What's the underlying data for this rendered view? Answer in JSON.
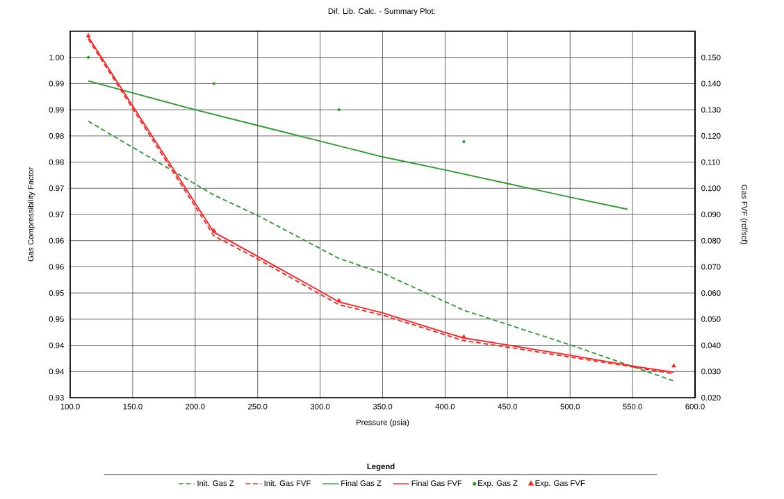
{
  "chart_data": {
    "type": "line",
    "title": "Dif. Lib. Calc. - Summary Plot:",
    "xlabel": "Pressure (psia)",
    "ylabel": "Gas Compressibility Factor",
    "y2label": "Gas FVF (rcf/scf)",
    "legend_title": "Legend",
    "legend": "bottom",
    "grid": true,
    "xlim": [
      100,
      600
    ],
    "ylim": [
      0.93,
      1.0
    ],
    "y2lim": [
      0.02,
      0.16
    ],
    "xticks": [
      {
        "value": 100,
        "label": "100.0"
      },
      {
        "value": 150,
        "label": "150.0"
      },
      {
        "value": 200,
        "label": "200.0"
      },
      {
        "value": 250,
        "label": "250.0"
      },
      {
        "value": 300,
        "label": "300.0"
      },
      {
        "value": 350,
        "label": "350.0"
      },
      {
        "value": 400,
        "label": "400.0"
      },
      {
        "value": 450,
        "label": "450.0"
      },
      {
        "value": 500,
        "label": "500.0"
      },
      {
        "value": 550,
        "label": "550.0"
      },
      {
        "value": 600,
        "label": "600.0"
      }
    ],
    "yticks": [
      {
        "value": 0.93,
        "label": "0.93"
      },
      {
        "value": 0.935,
        "label": "0.94"
      },
      {
        "value": 0.94,
        "label": "0.94"
      },
      {
        "value": 0.945,
        "label": "0.95"
      },
      {
        "value": 0.95,
        "label": "0.95"
      },
      {
        "value": 0.955,
        "label": "0.96"
      },
      {
        "value": 0.96,
        "label": "0.96"
      },
      {
        "value": 0.965,
        "label": "0.97"
      },
      {
        "value": 0.97,
        "label": "0.97"
      },
      {
        "value": 0.975,
        "label": "0.98"
      },
      {
        "value": 0.98,
        "label": "0.98"
      },
      {
        "value": 0.985,
        "label": "0.99"
      },
      {
        "value": 0.99,
        "label": "0.99"
      },
      {
        "value": 0.995,
        "label": "1.00"
      }
    ],
    "y2ticks": [
      {
        "value": 0.02,
        "label": "0.020"
      },
      {
        "value": 0.03,
        "label": "0.030"
      },
      {
        "value": 0.04,
        "label": "0.040"
      },
      {
        "value": 0.05,
        "label": "0.050"
      },
      {
        "value": 0.06,
        "label": "0.060"
      },
      {
        "value": 0.07,
        "label": "0.070"
      },
      {
        "value": 0.08,
        "label": "0.080"
      },
      {
        "value": 0.09,
        "label": "0.090"
      },
      {
        "value": 0.1,
        "label": "0.100"
      },
      {
        "value": 0.11,
        "label": "0.110"
      },
      {
        "value": 0.12,
        "label": "0.120"
      },
      {
        "value": 0.13,
        "label": "0.130"
      },
      {
        "value": 0.14,
        "label": "0.140"
      },
      {
        "value": 0.15,
        "label": "0.150"
      }
    ],
    "series": [
      {
        "name": "Init. Gas Z",
        "color": "#2e9a2e",
        "line_style": "dashed",
        "marker": "none",
        "x": [
          114.5,
          215,
          250,
          315,
          350,
          415,
          500,
          583
        ],
        "values": [
          0.9828,
          0.9687,
          0.9648,
          0.9566,
          0.9538,
          0.9467,
          0.9401,
          0.9332
        ]
      },
      {
        "name": "Init. Gas FVF",
        "axis": "y2",
        "color": "#ff2020",
        "line_style": "dashed",
        "marker": "none",
        "x": [
          114.5,
          215,
          250,
          315,
          350,
          415,
          450,
          500,
          550,
          583
        ],
        "values": [
          0.157,
          0.0818,
          0.073,
          0.0555,
          0.0515,
          0.0418,
          0.0393,
          0.0355,
          0.0318,
          0.0291
        ]
      },
      {
        "name": "Final Gas Z",
        "color": "#2e9a2e",
        "line_style": "solid",
        "marker": "none",
        "x": [
          114.5,
          200,
          250,
          300,
          350,
          400,
          450,
          500,
          546
        ],
        "values": [
          0.9905,
          0.985,
          0.982,
          0.979,
          0.976,
          0.9735,
          0.9709,
          0.9683,
          0.966
        ]
      },
      {
        "name": "Final Gas FVF",
        "axis": "y2",
        "color": "#ff2020",
        "line_style": "solid",
        "marker": "none",
        "x": [
          114.5,
          215,
          250,
          300,
          315,
          350,
          400,
          415,
          450,
          500,
          550,
          583
        ],
        "values": [
          0.1578,
          0.0832,
          0.074,
          0.0607,
          0.0566,
          0.0524,
          0.0449,
          0.0428,
          0.0401,
          0.0362,
          0.0321,
          0.0297
        ]
      },
      {
        "name": "Exp. Gas Z",
        "type": "scatter",
        "color": "#2e9a2e",
        "marker": "circle",
        "x": [
          114.5,
          215,
          315,
          415
        ],
        "values": [
          0.995,
          0.99,
          0.985,
          0.9789
        ]
      },
      {
        "name": "Exp. Gas FVF",
        "type": "scatter",
        "axis": "y2",
        "color": "#ff2020",
        "marker": "triangle",
        "x": [
          114.5,
          215,
          315,
          415,
          583
        ],
        "values": [
          0.1583,
          0.0838,
          0.0571,
          0.0432,
          0.0321
        ]
      }
    ]
  }
}
